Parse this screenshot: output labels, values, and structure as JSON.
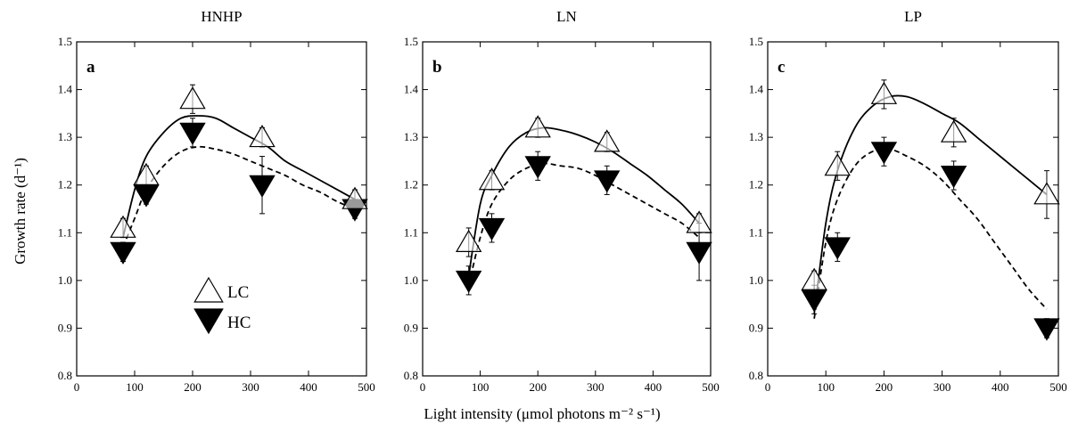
{
  "figure": {
    "xlabel": "Light intensity (μmol photons m⁻² s⁻¹)",
    "ylabel": "Growth rate (d⁻¹)"
  },
  "legend": {
    "items": [
      {
        "label": "LC",
        "marker": "triangle-up-open"
      },
      {
        "label": "HC",
        "marker": "triangle-down-filled"
      }
    ],
    "placement": "lower-middle of panel a"
  },
  "colors": {
    "lc": "#ffffff",
    "hc": "#000000",
    "line": "#000000"
  },
  "chart_data": [
    {
      "type": "scatter",
      "title": "HNHP",
      "panel_label": "a",
      "xlim": [
        0,
        500
      ],
      "ylim": [
        0.8,
        1.5
      ],
      "xticks": [
        0,
        100,
        200,
        300,
        400,
        500
      ],
      "yticks": [
        0.8,
        0.9,
        1.0,
        1.1,
        1.2,
        1.3,
        1.4,
        1.5
      ],
      "grid": false,
      "series": [
        {
          "name": "LC",
          "x": [
            80,
            120,
            200,
            320,
            480
          ],
          "y": [
            1.11,
            1.22,
            1.38,
            1.3,
            1.17
          ],
          "err": [
            0.02,
            0.02,
            0.03,
            0.02,
            0.02
          ]
        },
        {
          "name": "HC",
          "x": [
            80,
            120,
            200,
            320,
            480
          ],
          "y": [
            1.06,
            1.18,
            1.31,
            1.2,
            1.15
          ],
          "err": [
            0.02,
            0.02,
            0.03,
            0.06,
            0.02
          ]
        }
      ],
      "fits": [
        {
          "series": "LC",
          "style": "solid",
          "x": [
            80,
            100,
            120,
            150,
            180,
            210,
            240,
            270,
            300,
            330,
            360,
            390,
            420,
            450,
            480
          ],
          "y": [
            1.09,
            1.19,
            1.26,
            1.31,
            1.34,
            1.345,
            1.34,
            1.32,
            1.3,
            1.28,
            1.25,
            1.23,
            1.21,
            1.19,
            1.17
          ]
        },
        {
          "series": "HC",
          "style": "dashed",
          "x": [
            80,
            100,
            120,
            150,
            180,
            210,
            240,
            270,
            300,
            330,
            360,
            390,
            420,
            450,
            480
          ],
          "y": [
            1.07,
            1.13,
            1.19,
            1.24,
            1.27,
            1.28,
            1.275,
            1.265,
            1.25,
            1.235,
            1.22,
            1.2,
            1.185,
            1.165,
            1.15
          ]
        }
      ]
    },
    {
      "type": "scatter",
      "title": "LN",
      "panel_label": "b",
      "xlim": [
        0,
        500
      ],
      "ylim": [
        0.8,
        1.5
      ],
      "xticks": [
        0,
        100,
        200,
        300,
        400,
        500
      ],
      "yticks": [
        0.8,
        0.9,
        1.0,
        1.1,
        1.2,
        1.3,
        1.4,
        1.5
      ],
      "grid": false,
      "series": [
        {
          "name": "LC",
          "x": [
            80,
            120,
            200,
            320,
            480
          ],
          "y": [
            1.08,
            1.21,
            1.32,
            1.29,
            1.12
          ],
          "err": [
            0.03,
            0.02,
            0.02,
            0.02,
            0.02
          ]
        },
        {
          "name": "HC",
          "x": [
            80,
            120,
            200,
            320,
            480
          ],
          "y": [
            1.0,
            1.11,
            1.24,
            1.21,
            1.06
          ],
          "err": [
            0.03,
            0.03,
            0.03,
            0.03,
            0.06
          ]
        }
      ],
      "fits": [
        {
          "series": "LC",
          "style": "solid",
          "x": [
            80,
            100,
            120,
            150,
            180,
            210,
            240,
            270,
            300,
            330,
            360,
            390,
            420,
            450,
            480
          ],
          "y": [
            1.01,
            1.16,
            1.22,
            1.28,
            1.31,
            1.32,
            1.315,
            1.305,
            1.29,
            1.27,
            1.245,
            1.22,
            1.19,
            1.16,
            1.12
          ]
        },
        {
          "series": "HC",
          "style": "dashed",
          "x": [
            80,
            100,
            120,
            150,
            180,
            210,
            240,
            270,
            300,
            330,
            360,
            390,
            420,
            450,
            480
          ],
          "y": [
            0.99,
            1.09,
            1.16,
            1.21,
            1.235,
            1.245,
            1.24,
            1.235,
            1.22,
            1.2,
            1.18,
            1.16,
            1.14,
            1.12,
            1.09
          ]
        }
      ]
    },
    {
      "type": "scatter",
      "title": "LP",
      "panel_label": "c",
      "xlim": [
        0,
        500
      ],
      "ylim": [
        0.8,
        1.5
      ],
      "xticks": [
        0,
        100,
        200,
        300,
        400,
        500
      ],
      "yticks": [
        0.8,
        0.9,
        1.0,
        1.1,
        1.2,
        1.3,
        1.4,
        1.5
      ],
      "grid": false,
      "series": [
        {
          "name": "LC",
          "x": [
            80,
            120,
            200,
            320,
            480
          ],
          "y": [
            1.0,
            1.24,
            1.39,
            1.31,
            1.18
          ],
          "err": [
            0.02,
            0.03,
            0.03,
            0.03,
            0.05
          ]
        },
        {
          "name": "HC",
          "x": [
            80,
            120,
            200,
            320,
            480
          ],
          "y": [
            0.96,
            1.07,
            1.27,
            1.22,
            0.9
          ],
          "err": [
            0.03,
            0.03,
            0.03,
            0.03,
            0.02
          ]
        }
      ],
      "fits": [
        {
          "series": "LC",
          "style": "solid",
          "x": [
            80,
            100,
            120,
            150,
            180,
            210,
            240,
            270,
            300,
            330,
            360,
            390,
            420,
            450,
            480
          ],
          "y": [
            0.93,
            1.12,
            1.23,
            1.32,
            1.365,
            1.385,
            1.385,
            1.37,
            1.35,
            1.33,
            1.3,
            1.27,
            1.24,
            1.21,
            1.18
          ]
        },
        {
          "series": "HC",
          "style": "dashed",
          "x": [
            80,
            100,
            120,
            150,
            180,
            210,
            240,
            270,
            300,
            330,
            360,
            390,
            420,
            450,
            480
          ],
          "y": [
            0.92,
            1.08,
            1.17,
            1.24,
            1.27,
            1.275,
            1.26,
            1.24,
            1.21,
            1.17,
            1.13,
            1.08,
            1.03,
            0.98,
            0.94
          ]
        }
      ]
    }
  ]
}
